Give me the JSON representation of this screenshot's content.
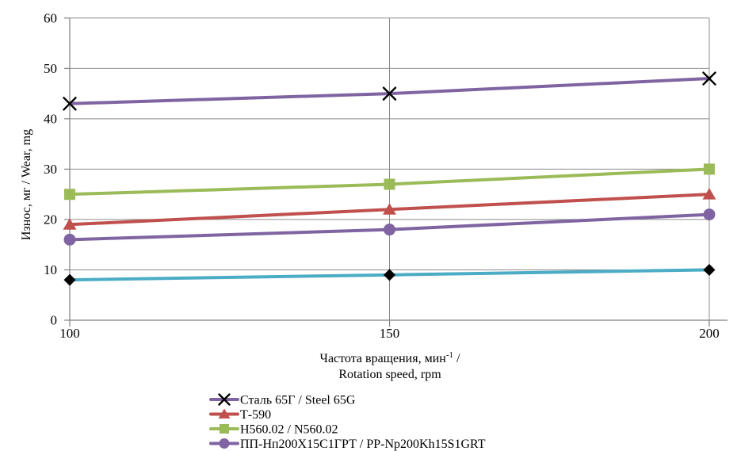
{
  "chart_data": {
    "type": "line",
    "title": "",
    "x": [
      100,
      150,
      200
    ],
    "x_tick_labels": [
      "100",
      "150",
      "200"
    ],
    "y_ticks": [
      0,
      10,
      20,
      30,
      40,
      50,
      60
    ],
    "ylim": [
      0,
      60
    ],
    "grid": true,
    "legend_position": "bottom-left",
    "ylabel": "Износ, мг / Wear, mg",
    "xlabel_line1_main": "Частота вращения, мин",
    "xlabel_line1_sup": "-1",
    "xlabel_line1_tail": " /",
    "xlabel_line2": "Rotation speed, rpm",
    "series": [
      {
        "name": "Сталь 65Г / Steel 65G",
        "values": [
          43,
          45,
          48
        ],
        "line_color": "#8064A2",
        "marker": "x-cross",
        "marker_color": "#000000",
        "in_legend": true
      },
      {
        "name": "Т-590",
        "values": [
          19,
          22,
          25
        ],
        "line_color": "#C0504D",
        "marker": "triangle",
        "marker_color": "#C0504D",
        "in_legend": true
      },
      {
        "name": "Н560.02 / N560.02",
        "values": [
          25,
          27,
          30
        ],
        "line_color": "#9BBB59",
        "marker": "square",
        "marker_color": "#9BBB59",
        "in_legend": true
      },
      {
        "name": "ПП-Нп200Х15С1ГРТ / PP-Np200Kh15S1GRT",
        "values": [
          16,
          18,
          21
        ],
        "line_color": "#8064A2",
        "marker": "circle",
        "marker_color": "#8064A2",
        "in_legend": true
      },
      {
        "name": "",
        "values": [
          8,
          9,
          10
        ],
        "line_color": "#4BACC6",
        "marker": "diamond",
        "marker_color": "#000000",
        "in_legend": false
      }
    ],
    "colors": {
      "gridline": "#8C8C8C",
      "axis": "#808080",
      "text": "#000000",
      "background": "#FFFFFF"
    }
  }
}
